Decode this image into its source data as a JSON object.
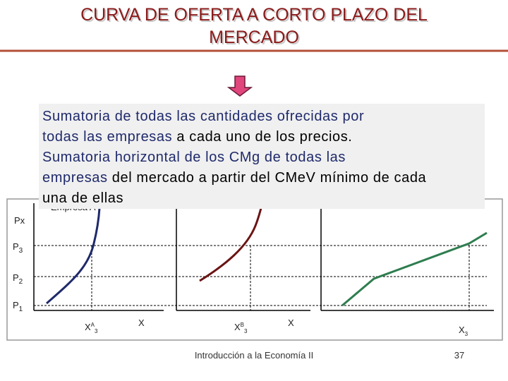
{
  "title": {
    "lines": [
      "CURVA DE OFERTA A CORTO PLAZO DEL",
      "MERCADO"
    ]
  },
  "text_box": {
    "lines": [
      [
        {
          "text": "Sumatoria de todas las cantidades ofrecidas por",
          "color": "#1f2a6b"
        }
      ],
      [
        {
          "text": "todas las empresas",
          "color": "#1f2a6b"
        },
        {
          "text": " a cada uno de los precios.",
          "color": "#000000"
        }
      ],
      [
        {
          "text": "Sumatoria horizontal de los CMg de todas las",
          "color": "#1f2a6b"
        }
      ],
      [
        {
          "text": "empresas",
          "color": "#1f2a6b"
        },
        {
          "text": " del mercado a partir del CMeV mínimo de cada",
          "color": "#000000"
        }
      ],
      [
        {
          "text": "una de ellas",
          "color": "#000000"
        }
      ]
    ]
  },
  "graph": {
    "y_axis_label": "Px",
    "panel_label": "Empresa A",
    "price_labels": [
      {
        "main": "P",
        "sub": "3"
      },
      {
        "main": "P",
        "sub": "2"
      },
      {
        "main": "P",
        "sub": "1"
      }
    ],
    "x_labels": [
      {
        "main": "X",
        "sup": "A",
        "sub": "3"
      },
      {
        "main": "X"
      },
      {
        "main": "X",
        "sup": "B",
        "sub": "3"
      },
      {
        "main": "X"
      },
      {
        "main": "X",
        "sub": "3"
      }
    ]
  },
  "footer": {
    "course": "Introducción a la Economía II",
    "page": "37"
  }
}
